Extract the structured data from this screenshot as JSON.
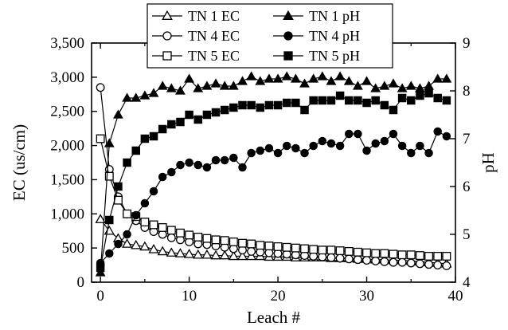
{
  "chart_data": {
    "type": "line",
    "xlabel": "Leach #",
    "ylabel": "EC (us/cm)",
    "y2label": "pH",
    "xlim": [
      -1,
      40
    ],
    "ylim": [
      0,
      3500
    ],
    "y2lim": [
      4,
      9
    ],
    "x_ticks": [
      0,
      10,
      20,
      30,
      40
    ],
    "y_ticks": [
      0,
      500,
      1000,
      1500,
      2000,
      2500,
      3000,
      3500
    ],
    "y_tick_labels": [
      "0",
      "500",
      "1,000",
      "1,500",
      "2,000",
      "2,500",
      "3,000",
      "3,500"
    ],
    "y2_ticks": [
      4,
      5,
      6,
      7,
      8,
      9
    ],
    "y2_tick_labels": [
      "4",
      "5",
      "6",
      "7",
      "8",
      "9"
    ],
    "legend_position": "top-center",
    "series": [
      {
        "name": "TN 1 EC",
        "axis": "left",
        "marker": "triangle",
        "filled": false,
        "x": [
          0,
          1,
          2,
          3,
          4,
          5,
          6,
          7,
          8,
          9,
          10,
          11,
          12,
          13,
          14,
          15,
          16,
          17,
          18,
          19,
          20,
          21,
          22,
          23,
          24,
          25,
          26,
          27,
          28,
          29,
          30,
          31,
          32,
          33,
          34,
          35,
          36,
          37,
          38,
          39
        ],
        "y": [
          920,
          750,
          640,
          560,
          540,
          520,
          480,
          450,
          430,
          420,
          410,
          400,
          400,
          390,
          390,
          380,
          380,
          380,
          380,
          370,
          370,
          370,
          360,
          360,
          360,
          360,
          350,
          350,
          350,
          340,
          340,
          330,
          330,
          320,
          320,
          310,
          300,
          290,
          280,
          270
        ]
      },
      {
        "name": "TN 4 EC",
        "axis": "left",
        "marker": "circle",
        "filled": false,
        "x": [
          0,
          1,
          2,
          3,
          4,
          5,
          6,
          7,
          8,
          9,
          10,
          11,
          12,
          13,
          14,
          15,
          16,
          17,
          18,
          19,
          20,
          21,
          22,
          23,
          24,
          25,
          26,
          27,
          28,
          29,
          30,
          31,
          32,
          33,
          34,
          35,
          36,
          37,
          38,
          39
        ],
        "y": [
          2850,
          1650,
          1250,
          1000,
          900,
          800,
          740,
          700,
          650,
          620,
          590,
          560,
          550,
          530,
          510,
          490,
          470,
          450,
          440,
          430,
          420,
          410,
          400,
          390,
          380,
          370,
          360,
          350,
          340,
          330,
          320,
          310,
          300,
          290,
          290,
          280,
          270,
          260,
          250,
          240
        ]
      },
      {
        "name": "TN 5 EC",
        "axis": "left",
        "marker": "square",
        "filled": false,
        "x": [
          0,
          1,
          2,
          3,
          4,
          5,
          6,
          7,
          8,
          9,
          10,
          11,
          12,
          13,
          14,
          15,
          16,
          17,
          18,
          19,
          20,
          21,
          22,
          23,
          24,
          25,
          26,
          27,
          28,
          29,
          30,
          31,
          32,
          33,
          34,
          35,
          36,
          37,
          38,
          39
        ],
        "y": [
          2100,
          1550,
          1200,
          1000,
          960,
          880,
          840,
          800,
          760,
          720,
          690,
          660,
          640,
          620,
          610,
          590,
          570,
          560,
          540,
          530,
          520,
          510,
          500,
          490,
          480,
          470,
          470,
          460,
          450,
          440,
          430,
          420,
          420,
          410,
          400,
          400,
          390,
          380,
          380,
          380
        ]
      },
      {
        "name": "TN 1 pH",
        "axis": "right",
        "marker": "triangle",
        "filled": true,
        "x": [
          0,
          1,
          2,
          3,
          4,
          5,
          6,
          7,
          8,
          9,
          10,
          11,
          12,
          13,
          14,
          15,
          16,
          17,
          18,
          19,
          20,
          21,
          22,
          23,
          24,
          25,
          26,
          27,
          28,
          29,
          30,
          31,
          32,
          33,
          34,
          35,
          36,
          37,
          38,
          39
        ],
        "y": [
          4.2,
          6.9,
          7.5,
          7.85,
          7.85,
          7.9,
          7.95,
          8.1,
          8.05,
          8.0,
          8.25,
          8.05,
          8.1,
          8.15,
          8.1,
          8.1,
          8.2,
          8.3,
          8.2,
          8.25,
          8.25,
          8.3,
          8.25,
          8.15,
          8.25,
          8.3,
          8.2,
          8.3,
          8.2,
          8.1,
          8.2,
          8.05,
          8.1,
          8.15,
          8.05,
          8.1,
          8.05,
          8.1,
          8.25,
          8.25
        ]
      },
      {
        "name": "TN 4 pH",
        "axis": "right",
        "marker": "circle",
        "filled": true,
        "x": [
          0,
          1,
          2,
          3,
          4,
          5,
          6,
          7,
          8,
          9,
          10,
          11,
          12,
          13,
          14,
          15,
          16,
          17,
          18,
          19,
          20,
          21,
          22,
          23,
          24,
          25,
          26,
          27,
          28,
          29,
          30,
          31,
          32,
          33,
          34,
          35,
          36,
          37,
          38,
          39
        ],
        "y": [
          4.4,
          4.6,
          4.8,
          5.0,
          5.4,
          5.65,
          5.9,
          6.2,
          6.3,
          6.45,
          6.5,
          6.45,
          6.4,
          6.55,
          6.55,
          6.6,
          6.4,
          6.7,
          6.75,
          6.8,
          6.7,
          6.85,
          6.8,
          6.7,
          6.85,
          6.95,
          6.9,
          6.85,
          7.1,
          7.1,
          6.75,
          6.9,
          6.95,
          7.1,
          6.85,
          6.7,
          6.85,
          6.7,
          7.15,
          7.05
        ]
      },
      {
        "name": "TN 5 pH",
        "axis": "right",
        "marker": "square",
        "filled": true,
        "x": [
          0,
          1,
          2,
          3,
          4,
          5,
          6,
          7,
          8,
          9,
          10,
          11,
          12,
          13,
          14,
          15,
          16,
          17,
          18,
          19,
          20,
          21,
          22,
          23,
          24,
          25,
          26,
          27,
          28,
          29,
          30,
          31,
          32,
          33,
          34,
          35,
          36,
          37,
          38,
          39
        ],
        "y": [
          4.3,
          5.3,
          6.0,
          6.5,
          6.75,
          7.0,
          7.05,
          7.2,
          7.3,
          7.35,
          7.5,
          7.4,
          7.5,
          7.55,
          7.6,
          7.65,
          7.7,
          7.7,
          7.65,
          7.7,
          7.7,
          7.75,
          7.75,
          7.6,
          7.8,
          7.8,
          7.8,
          7.9,
          7.8,
          7.8,
          7.75,
          7.8,
          7.7,
          7.6,
          7.85,
          7.8,
          7.9,
          7.95,
          7.85,
          7.8
        ]
      }
    ]
  }
}
